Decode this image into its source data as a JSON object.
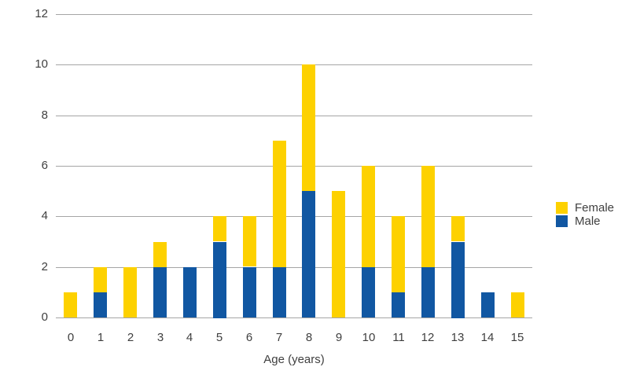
{
  "chart_data": {
    "type": "bar",
    "stacked": true,
    "title": "",
    "xlabel": "Age (years)",
    "ylabel": "",
    "categories": [
      "0",
      "1",
      "2",
      "3",
      "4",
      "5",
      "6",
      "7",
      "8",
      "9",
      "10",
      "11",
      "12",
      "13",
      "14",
      "15"
    ],
    "series": [
      {
        "name": "Male",
        "color": "#1157A2",
        "values": [
          0,
          1,
          0,
          2,
          2,
          3,
          2,
          2,
          5,
          0,
          2,
          1,
          2,
          3,
          1,
          0
        ]
      },
      {
        "name": "Female",
        "color": "#FDD100",
        "values": [
          1,
          1,
          2,
          1,
          0,
          1,
          2,
          5,
          5,
          5,
          4,
          3,
          4,
          1,
          0,
          1
        ]
      }
    ],
    "ylim": [
      0,
      12
    ],
    "yticks": [
      0,
      2,
      4,
      6,
      8,
      10,
      12
    ],
    "grid": true,
    "gridline_color": "#A5A5A5",
    "text_color": "#3F3F3F",
    "legend": {
      "position": "right",
      "items": [
        {
          "label": "Female",
          "color": "#FDD100"
        },
        {
          "label": "Male",
          "color": "#1157A2"
        }
      ]
    }
  }
}
